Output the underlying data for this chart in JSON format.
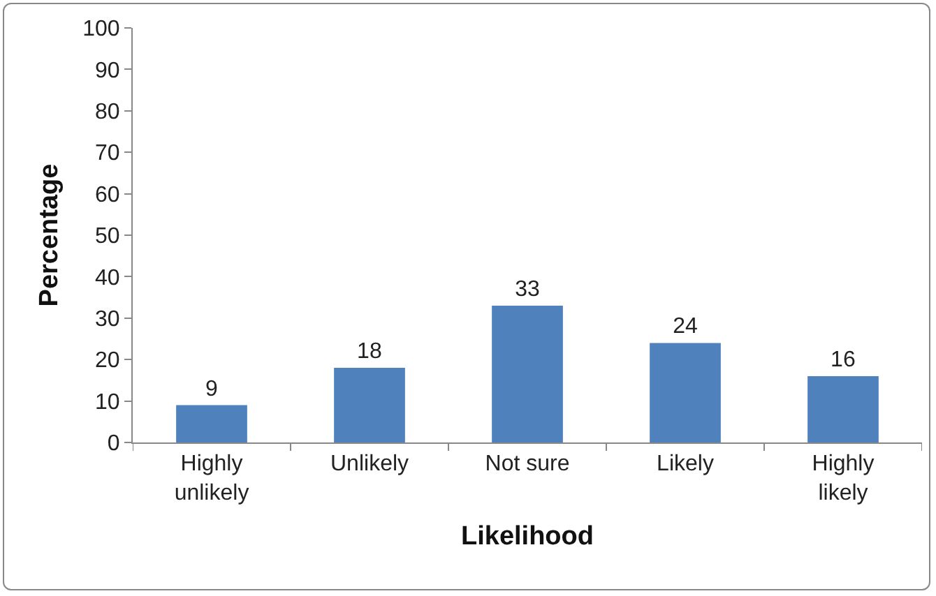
{
  "chart_data": {
    "type": "bar",
    "xlabel": "Likelihood",
    "ylabel": "Percentage",
    "categories": [
      "Highly unlikely",
      "Unlikely",
      "Not sure",
      "Likely",
      "Highly likely"
    ],
    "values": [
      9,
      18,
      33,
      24,
      16
    ],
    "color": "#4f81bd",
    "ylim": [
      0,
      100
    ],
    "yticks": [
      0,
      10,
      20,
      30,
      40,
      50,
      60,
      70,
      80,
      90,
      100
    ],
    "grid": false,
    "data_labels": true
  }
}
